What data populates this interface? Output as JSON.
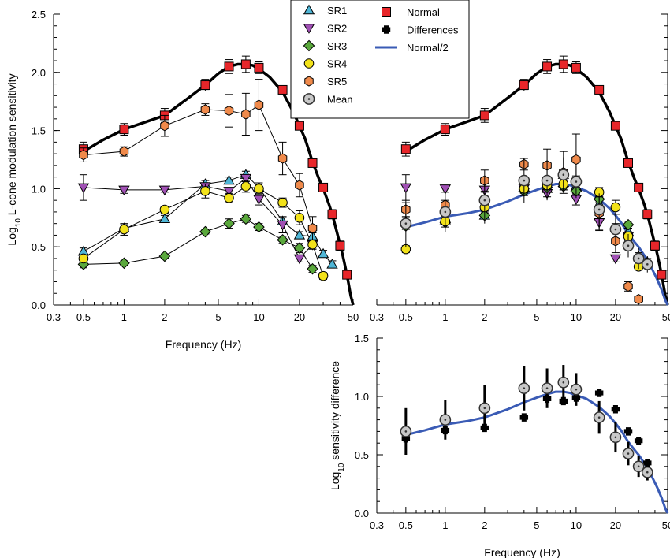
{
  "chart_data": [
    {
      "type": "scatter",
      "panel": "top-left",
      "xscale": "log",
      "xlim": [
        0.3,
        50
      ],
      "ylim": [
        0,
        2.5
      ],
      "xticks": [
        "0.3",
        "0.5",
        "1",
        "2",
        "5",
        "10",
        "20",
        "50"
      ],
      "yticks": [
        "0.0",
        "0.5",
        "1.0",
        "1.5",
        "2.0",
        "2.5"
      ],
      "xlabel": "Frequency (Hz)",
      "ylabel": "L-cone modulation sensitivity",
      "ylabel_prefix": "Log",
      "ylabel_sub": "10",
      "series": [
        {
          "name": "Normal",
          "marker": "square",
          "color": "#e8262a",
          "x": [
            0.5,
            1,
            2,
            4,
            6,
            8,
            10,
            15,
            20,
            25,
            30,
            35,
            40,
            45
          ],
          "y": [
            1.34,
            1.51,
            1.63,
            1.89,
            2.05,
            2.07,
            2.04,
            1.85,
            1.54,
            1.22,
            1.01,
            0.78,
            0.51,
            0.26
          ],
          "err": [
            0.06,
            0.05,
            0.06,
            0.05,
            0.06,
            0.07,
            0.05,
            0.03,
            0.03,
            0.03,
            0.03,
            0.04,
            0.04,
            0.03
          ]
        },
        {
          "name": "SR1",
          "marker": "triangle-up",
          "color": "#4fb6d6",
          "x": [
            0.5,
            1,
            2,
            4,
            6,
            8,
            10,
            15,
            20,
            25,
            30,
            35
          ],
          "y": [
            0.46,
            0.66,
            0.74,
            1.04,
            1.07,
            1.12,
            1.01,
            0.72,
            0.6,
            0.59,
            0.44,
            0.35
          ],
          "err": [
            0.03,
            0.03,
            0.03,
            0.03,
            0.03,
            0.03,
            0.03,
            0.03,
            0.03,
            0.03,
            0.03,
            0.03
          ]
        },
        {
          "name": "SR2",
          "marker": "triangle-down",
          "color": "#a050b4",
          "x": [
            0.5,
            1,
            2,
            4,
            6,
            8,
            10,
            15,
            20,
            25
          ],
          "y": [
            1.01,
            0.99,
            0.99,
            1.02,
            0.98,
            1.09,
            0.91,
            0.69,
            0.4,
            0.52
          ],
          "err": [
            0.11,
            0.03,
            0.02,
            0.03,
            0.03,
            0.03,
            0.05,
            0.07,
            0.03,
            0.04
          ]
        },
        {
          "name": "SR3",
          "marker": "diamond",
          "color": "#5aa83c",
          "x": [
            0.5,
            1,
            2,
            4,
            6,
            8,
            10,
            15,
            20,
            25
          ],
          "y": [
            0.35,
            0.36,
            0.42,
            0.63,
            0.7,
            0.74,
            0.67,
            0.56,
            0.49,
            0.31
          ],
          "err": [
            0.03,
            0.02,
            0.02,
            0.02,
            0.04,
            0.03,
            0.03,
            0.03,
            0.04,
            0.03
          ]
        },
        {
          "name": "SR4",
          "marker": "circle",
          "color": "#f2e21a",
          "x": [
            0.5,
            1,
            2,
            4,
            6,
            8,
            10,
            15,
            20,
            25,
            30
          ],
          "y": [
            0.4,
            0.65,
            0.82,
            0.98,
            0.92,
            1.02,
            1.0,
            0.88,
            0.75,
            0.52,
            0.25
          ],
          "err": [
            0.03,
            0.05,
            0.03,
            0.06,
            0.04,
            0.05,
            0.05,
            0.04,
            0.06,
            0.04,
            0.03
          ]
        },
        {
          "name": "SR5",
          "marker": "hexagon",
          "color": "#f08a4b",
          "x": [
            0.5,
            1,
            2,
            4,
            6,
            8,
            10,
            15,
            20,
            25
          ],
          "y": [
            1.29,
            1.32,
            1.54,
            1.68,
            1.67,
            1.64,
            1.72,
            1.26,
            1.03,
            0.66
          ],
          "err": [
            0.06,
            0.04,
            0.09,
            0.05,
            0.14,
            0.18,
            0.22,
            0.14,
            0.1,
            0.1
          ]
        }
      ],
      "curves": [
        {
          "name": "Normal fit",
          "style": "black thick",
          "x": [
            0.5,
            0.7,
            1,
            1.5,
            2,
            3,
            4,
            5,
            6,
            7,
            8,
            9,
            10,
            12,
            15,
            18,
            20,
            22,
            25,
            28,
            30,
            33,
            35,
            38,
            40,
            42,
            45,
            48,
            50
          ],
          "y": [
            1.32,
            1.42,
            1.51,
            1.58,
            1.63,
            1.78,
            1.89,
            1.99,
            2.05,
            2.07,
            2.07,
            2.06,
            2.03,
            1.96,
            1.83,
            1.66,
            1.54,
            1.43,
            1.23,
            1.08,
            1.0,
            0.87,
            0.78,
            0.62,
            0.52,
            0.42,
            0.26,
            0.08,
            0.0
          ]
        }
      ]
    },
    {
      "type": "scatter",
      "panel": "top-right",
      "xscale": "log",
      "xlim": [
        0.3,
        50
      ],
      "ylim": [
        0,
        2.5
      ],
      "xticks": [
        "0.3",
        "0.5",
        "1",
        "2",
        "5",
        "10",
        "20",
        "50"
      ],
      "series": [
        {
          "name": "Normal",
          "marker": "square",
          "color": "#e8262a",
          "x": [
            0.5,
            1,
            2,
            4,
            6,
            8,
            10,
            15,
            20,
            25,
            30,
            35,
            40,
            45
          ],
          "y": [
            1.34,
            1.51,
            1.63,
            1.89,
            2.05,
            2.07,
            2.04,
            1.85,
            1.54,
            1.22,
            1.01,
            0.78,
            0.51,
            0.26
          ],
          "err": [
            0.06,
            0.05,
            0.06,
            0.05,
            0.06,
            0.07,
            0.05,
            0.03,
            0.03,
            0.03,
            0.03,
            0.04,
            0.04,
            0.03
          ]
        },
        {
          "name": "SR1",
          "marker": "triangle-up",
          "color": "#4fb6d6",
          "x": [
            0.5,
            1,
            2,
            4,
            6,
            8,
            10,
            15,
            20,
            25,
            30,
            35
          ],
          "y": [
            0.72,
            0.73,
            0.77,
            1.03,
            1.0,
            1.12,
            1.02,
            0.87,
            0.66,
            0.63,
            0.42,
            0.37
          ],
          "err": [
            0.03,
            0.03,
            0.03,
            0.03,
            0.03,
            0.03,
            0.03,
            0.03,
            0.03,
            0.03,
            0.03,
            0.03
          ]
        },
        {
          "name": "SR2",
          "marker": "triangle-down",
          "color": "#a050b4",
          "x": [
            0.5,
            1,
            2,
            4,
            6,
            8,
            10,
            15,
            20,
            25
          ],
          "y": [
            1.01,
            1.0,
            0.99,
            1.0,
            0.96,
            1.08,
            0.91,
            0.71,
            0.4,
            0.59
          ],
          "err": [
            0.11,
            0.03,
            0.02,
            0.03,
            0.03,
            0.03,
            0.05,
            0.07,
            0.03,
            0.04
          ]
        },
        {
          "name": "SR3",
          "marker": "diamond",
          "color": "#5aa83c",
          "x": [
            0.5,
            1,
            2,
            4,
            6,
            8,
            10,
            15,
            20,
            25
          ],
          "y": [
            0.68,
            0.71,
            0.77,
            0.98,
            1.01,
            1.02,
            0.98,
            0.91,
            0.66,
            0.69
          ],
          "err": [
            0.03,
            0.02,
            0.02,
            0.02,
            0.04,
            0.03,
            0.03,
            0.03,
            0.04,
            0.03
          ]
        },
        {
          "name": "SR4",
          "marker": "circle",
          "color": "#f2e21a",
          "x": [
            0.5,
            1,
            2,
            4,
            6,
            8,
            10,
            15,
            20,
            25,
            30
          ],
          "y": [
            0.48,
            0.72,
            0.84,
            1.0,
            1.03,
            1.04,
            1.06,
            0.97,
            0.84,
            0.59,
            0.33
          ],
          "err": [
            0.03,
            0.05,
            0.03,
            0.06,
            0.04,
            0.05,
            0.05,
            0.04,
            0.06,
            0.04,
            0.03
          ]
        },
        {
          "name": "SR5",
          "marker": "hexagon",
          "color": "#f08a4b",
          "x": [
            0.5,
            1,
            2,
            4,
            6,
            8,
            10,
            15,
            20,
            25,
            30
          ],
          "y": [
            0.82,
            0.86,
            1.07,
            1.21,
            1.2,
            1.14,
            1.25,
            0.79,
            0.55,
            0.16,
            0.05
          ],
          "err": [
            0.06,
            0.04,
            0.09,
            0.05,
            0.14,
            0.18,
            0.22,
            0.14,
            0.1,
            0.04,
            0.02
          ]
        },
        {
          "name": "Mean",
          "marker": "mean-circle",
          "color": "#c8c8c8",
          "x": [
            0.5,
            1,
            2,
            4,
            6,
            8,
            10,
            15,
            20,
            25,
            30,
            35
          ],
          "y": [
            0.7,
            0.8,
            0.9,
            1.07,
            1.07,
            1.12,
            1.06,
            0.82,
            0.65,
            0.51,
            0.4,
            0.35
          ],
          "err": [
            0.2,
            0.17,
            0.2,
            0.19,
            0.17,
            0.15,
            0.14,
            0.14,
            0.13,
            0.1,
            0.09,
            0.07
          ]
        }
      ],
      "curves": [
        {
          "name": "Normal fit",
          "style": "black thick",
          "x": [
            0.5,
            0.7,
            1,
            1.5,
            2,
            3,
            4,
            5,
            6,
            7,
            8,
            9,
            10,
            12,
            15,
            18,
            20,
            22,
            25,
            28,
            30,
            33,
            35,
            38,
            40,
            42,
            45,
            48,
            50
          ],
          "y": [
            1.32,
            1.42,
            1.51,
            1.58,
            1.63,
            1.78,
            1.89,
            1.99,
            2.05,
            2.07,
            2.07,
            2.06,
            2.03,
            1.96,
            1.83,
            1.66,
            1.54,
            1.43,
            1.23,
            1.08,
            1.0,
            0.87,
            0.78,
            0.62,
            0.52,
            0.42,
            0.26,
            0.08,
            0.0
          ]
        },
        {
          "name": "Normal/2",
          "style": "blue",
          "x": [
            0.5,
            0.7,
            1,
            1.5,
            2,
            3,
            4,
            5,
            6,
            7,
            8,
            9,
            10,
            12,
            15,
            18,
            20,
            22,
            25,
            28,
            30,
            33,
            35,
            38,
            40,
            42,
            45,
            48,
            50
          ],
          "y": [
            0.67,
            0.71,
            0.76,
            0.79,
            0.82,
            0.89,
            0.95,
            0.99,
            1.02,
            1.04,
            1.04,
            1.03,
            1.01,
            0.98,
            0.91,
            0.83,
            0.77,
            0.71,
            0.61,
            0.54,
            0.5,
            0.43,
            0.39,
            0.31,
            0.26,
            0.21,
            0.13,
            0.04,
            0.0
          ]
        }
      ]
    },
    {
      "type": "scatter",
      "panel": "bottom-right",
      "xscale": "log",
      "xlim": [
        0.3,
        50
      ],
      "ylim": [
        0,
        1.5
      ],
      "xticks": [
        "0.3",
        "0.5",
        "1",
        "2",
        "5",
        "10",
        "20",
        "50"
      ],
      "yticks": [
        "0.0",
        "0.5",
        "1.0",
        "1.5"
      ],
      "xlabel": "Frequency (Hz)",
      "ylabel": "sensitivity difference",
      "ylabel_prefix": "Log",
      "ylabel_sub": "10",
      "series": [
        {
          "name": "Mean",
          "marker": "mean-circle",
          "color": "#c8c8c8",
          "x": [
            0.5,
            1,
            2,
            4,
            6,
            8,
            10,
            15,
            20,
            25,
            30,
            35
          ],
          "y": [
            0.7,
            0.8,
            0.9,
            1.07,
            1.07,
            1.12,
            1.06,
            0.82,
            0.65,
            0.51,
            0.4,
            0.35
          ],
          "err": [
            0.2,
            0.17,
            0.2,
            0.19,
            0.17,
            0.15,
            0.14,
            0.14,
            0.13,
            0.1,
            0.09,
            0.07
          ]
        },
        {
          "name": "Differences",
          "marker": "plus",
          "color": "#000000",
          "x": [
            0.5,
            1,
            2,
            4,
            6,
            8,
            10,
            15,
            20,
            25,
            30,
            35
          ],
          "y": [
            0.64,
            0.71,
            0.73,
            0.82,
            0.98,
            0.96,
            0.99,
            1.03,
            0.89,
            0.7,
            0.62,
            0.43
          ],
          "err": [
            0,
            0,
            0,
            0,
            0,
            0,
            0,
            0,
            0,
            0,
            0,
            0
          ]
        }
      ],
      "curves": [
        {
          "name": "Normal/2",
          "style": "blue",
          "x": [
            0.5,
            0.7,
            1,
            1.5,
            2,
            3,
            4,
            5,
            6,
            7,
            8,
            9,
            10,
            12,
            15,
            18,
            20,
            22,
            25,
            28,
            30,
            33,
            35,
            38,
            40,
            42,
            45,
            48,
            50
          ],
          "y": [
            0.67,
            0.71,
            0.76,
            0.79,
            0.82,
            0.89,
            0.95,
            0.99,
            1.02,
            1.04,
            1.04,
            1.03,
            1.01,
            0.98,
            0.91,
            0.83,
            0.77,
            0.71,
            0.61,
            0.54,
            0.5,
            0.43,
            0.39,
            0.31,
            0.26,
            0.21,
            0.13,
            0.04,
            0.0
          ]
        }
      ]
    }
  ],
  "legend": {
    "placement": "top-center",
    "items": [
      {
        "label": "SR1",
        "marker": "triangle-up",
        "color": "#4fb6d6"
      },
      {
        "label": "SR2",
        "marker": "triangle-down",
        "color": "#a050b4"
      },
      {
        "label": "SR3",
        "marker": "diamond",
        "color": "#5aa83c"
      },
      {
        "label": "SR4",
        "marker": "circle",
        "color": "#f2e21a"
      },
      {
        "label": "SR5",
        "marker": "hexagon",
        "color": "#f08a4b"
      },
      {
        "label": "Mean",
        "marker": "mean-circle",
        "color": "#c8c8c8"
      },
      {
        "label": "Normal",
        "marker": "square",
        "color": "#e8262a"
      },
      {
        "label": "Differences",
        "marker": "plus",
        "color": "#000000"
      },
      {
        "label": "Normal/2",
        "marker": "line",
        "color": "#3a5bb5"
      }
    ]
  },
  "colors": {
    "fit_line": "#000000",
    "half_line": "#3a5bb5"
  }
}
